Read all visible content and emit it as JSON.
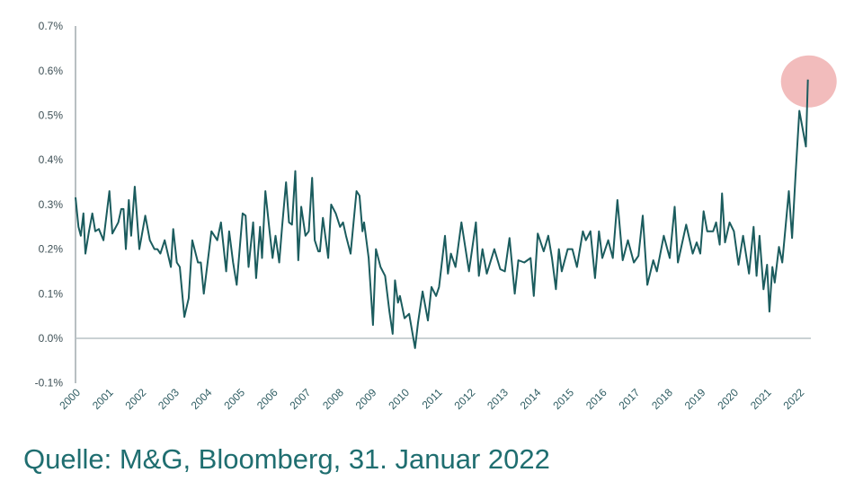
{
  "chart_data": {
    "type": "line",
    "title": "",
    "xlabel": "",
    "ylabel": "",
    "ylim": [
      -0.1,
      0.7
    ],
    "xlim": [
      2000,
      2022.3
    ],
    "yticks": [
      -0.1,
      0.0,
      0.1,
      0.2,
      0.3,
      0.4,
      0.5,
      0.6,
      0.7
    ],
    "ytick_labels": [
      "-0.1%",
      "0.0%",
      "0.1%",
      "0.2%",
      "0.3%",
      "0.4%",
      "0.5%",
      "0.6%",
      "0.7%"
    ],
    "xtick_labels": [
      "2000",
      "2001",
      "2002",
      "2003",
      "2004",
      "2005",
      "2006",
      "2007",
      "2008",
      "2009",
      "2010",
      "2011",
      "2012",
      "2013",
      "2014",
      "2015",
      "2016",
      "2017",
      "2018",
      "2019",
      "2020",
      "2021",
      "2022"
    ],
    "grid": false,
    "highlight": {
      "x": 2022.26,
      "y": 0.58,
      "color": "#eea5a5"
    },
    "series": [
      {
        "name": "",
        "color": "#1b5c5e",
        "x": [
          2000.0,
          2000.09,
          2000.16,
          2000.24,
          2000.3,
          2000.41,
          2000.51,
          2000.6,
          2000.71,
          2000.85,
          2001.03,
          2001.12,
          2001.3,
          2001.39,
          2001.46,
          2001.53,
          2001.62,
          2001.69,
          2001.8,
          2001.94,
          2002.12,
          2002.26,
          2002.4,
          2002.49,
          2002.58,
          2002.71,
          2002.9,
          2002.97,
          2003.08,
          2003.17,
          2003.31,
          2003.44,
          2003.55,
          2003.72,
          2003.81,
          2003.9,
          2004.13,
          2004.31,
          2004.42,
          2004.58,
          2004.67,
          2004.79,
          2004.9,
          2005.08,
          2005.17,
          2005.26,
          2005.4,
          2005.49,
          2005.61,
          2005.67,
          2005.77,
          2005.9,
          2005.99,
          2006.08,
          2006.19,
          2006.28,
          2006.4,
          2006.49,
          2006.58,
          2006.68,
          2006.77,
          2006.86,
          2006.99,
          2007.09,
          2007.19,
          2007.27,
          2007.38,
          2007.43,
          2007.52,
          2007.68,
          2007.77,
          2007.91,
          2008.04,
          2008.13,
          2008.22,
          2008.36,
          2008.54,
          2008.63,
          2008.72,
          2008.77,
          2008.91,
          2009.04,
          2009.13,
          2009.27,
          2009.41,
          2009.54,
          2009.64,
          2009.71,
          2009.8,
          2009.86,
          2010.0,
          2010.14,
          2010.32,
          2010.41,
          2010.55,
          2010.71,
          2010.82,
          2010.96,
          2011.05,
          2011.23,
          2011.32,
          2011.41,
          2011.55,
          2011.73,
          2011.96,
          2012.17,
          2012.26,
          2012.37,
          2012.5,
          2012.73,
          2012.91,
          2013.05,
          2013.19,
          2013.35,
          2013.46,
          2013.64,
          2013.83,
          2013.93,
          2014.05,
          2014.23,
          2014.37,
          2014.48,
          2014.6,
          2014.69,
          2014.78,
          2014.96,
          2015.1,
          2015.24,
          2015.42,
          2015.51,
          2015.65,
          2015.79,
          2015.91,
          2016.01,
          2016.19,
          2016.33,
          2016.47,
          2016.63,
          2016.79,
          2016.97,
          2017.11,
          2017.24,
          2017.38,
          2017.56,
          2017.67,
          2017.88,
          2018.06,
          2018.21,
          2018.31,
          2018.56,
          2018.76,
          2018.88,
          2018.99,
          2019.09,
          2019.2,
          2019.38,
          2019.47,
          2019.58,
          2019.65,
          2019.74,
          2019.88,
          2020.01,
          2020.15,
          2020.29,
          2020.47,
          2020.61,
          2020.7,
          2020.79,
          2020.91,
          2021.02,
          2021.09,
          2021.18,
          2021.25,
          2021.38,
          2021.48,
          2021.68,
          2021.78,
          2021.88,
          2022.0,
          2022.2,
          2022.26
        ],
        "y": [
          0.316,
          0.25,
          0.23,
          0.28,
          0.19,
          0.24,
          0.28,
          0.24,
          0.245,
          0.22,
          0.33,
          0.235,
          0.26,
          0.29,
          0.29,
          0.2,
          0.31,
          0.23,
          0.34,
          0.2,
          0.275,
          0.22,
          0.2,
          0.2,
          0.19,
          0.22,
          0.16,
          0.245,
          0.17,
          0.16,
          0.048,
          0.09,
          0.22,
          0.17,
          0.17,
          0.1,
          0.24,
          0.22,
          0.26,
          0.15,
          0.24,
          0.17,
          0.12,
          0.28,
          0.275,
          0.16,
          0.26,
          0.135,
          0.25,
          0.18,
          0.33,
          0.24,
          0.18,
          0.23,
          0.17,
          0.25,
          0.35,
          0.26,
          0.255,
          0.375,
          0.175,
          0.295,
          0.23,
          0.24,
          0.36,
          0.22,
          0.195,
          0.195,
          0.27,
          0.18,
          0.3,
          0.28,
          0.25,
          0.26,
          0.23,
          0.19,
          0.33,
          0.32,
          0.24,
          0.26,
          0.18,
          0.03,
          0.2,
          0.16,
          0.14,
          0.06,
          0.01,
          0.13,
          0.08,
          0.095,
          0.045,
          0.055,
          -0.022,
          0.035,
          0.105,
          0.04,
          0.115,
          0.095,
          0.115,
          0.23,
          0.145,
          0.19,
          0.16,
          0.26,
          0.15,
          0.26,
          0.14,
          0.2,
          0.145,
          0.2,
          0.155,
          0.15,
          0.225,
          0.1,
          0.175,
          0.17,
          0.18,
          0.095,
          0.235,
          0.195,
          0.23,
          0.18,
          0.11,
          0.2,
          0.15,
          0.2,
          0.2,
          0.16,
          0.24,
          0.22,
          0.24,
          0.135,
          0.24,
          0.18,
          0.22,
          0.18,
          0.31,
          0.175,
          0.22,
          0.17,
          0.185,
          0.275,
          0.12,
          0.175,
          0.15,
          0.23,
          0.18,
          0.295,
          0.17,
          0.255,
          0.19,
          0.215,
          0.19,
          0.285,
          0.24,
          0.24,
          0.26,
          0.21,
          0.325,
          0.215,
          0.26,
          0.24,
          0.165,
          0.23,
          0.145,
          0.25,
          0.14,
          0.23,
          0.11,
          0.165,
          0.06,
          0.16,
          0.125,
          0.205,
          0.17,
          0.33,
          0.225,
          0.36,
          0.51,
          0.43,
          0.58
        ]
      }
    ]
  },
  "caption": "Quelle: M&G, Bloomberg, 31. Januar 2022"
}
